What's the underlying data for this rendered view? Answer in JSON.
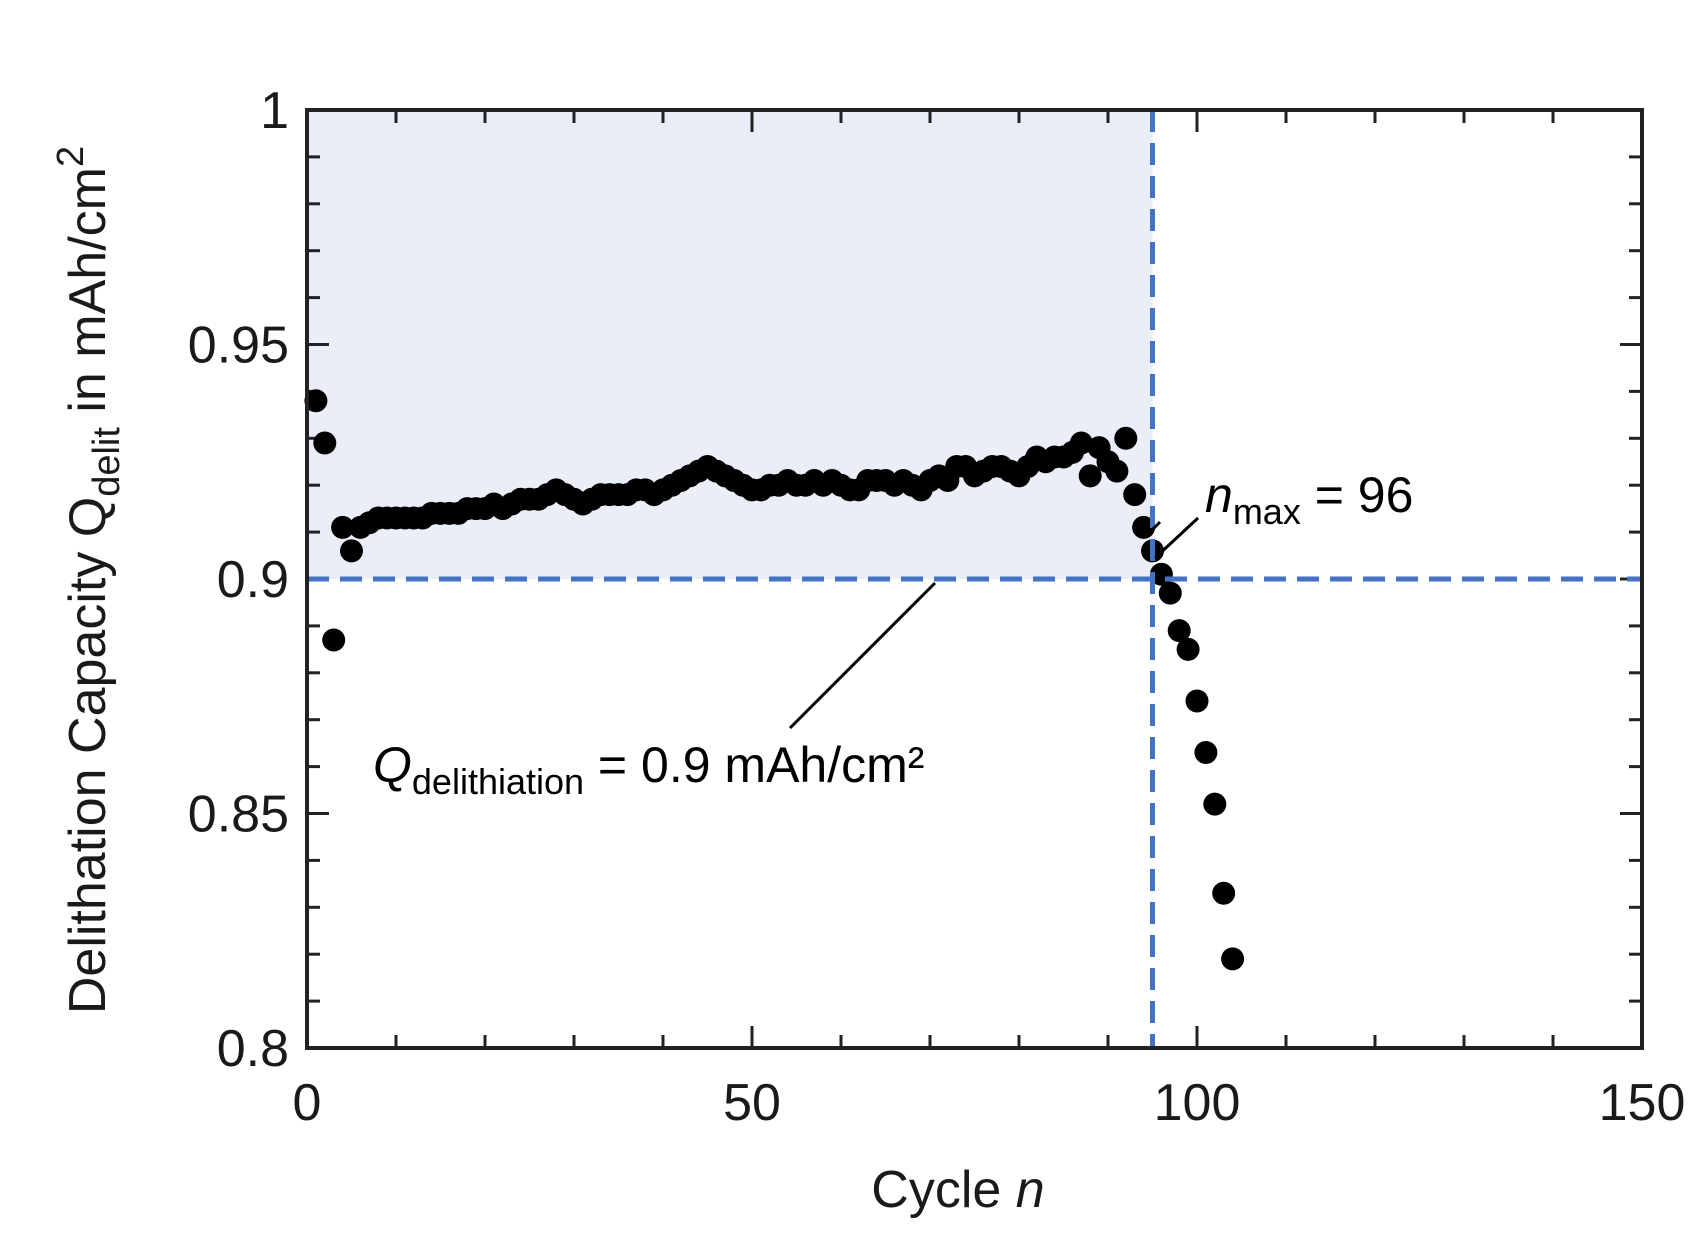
{
  "chart_data": {
    "type": "scatter",
    "xlabel": {
      "text": "Cycle ",
      "italic": "n"
    },
    "ylabel": {
      "prefix": "Delithation Capacity ",
      "symbol": "Q",
      "subscript": "delit",
      "suffix": " in mAh/cm",
      "superscript": "2"
    },
    "xlim": [
      0,
      150
    ],
    "ylim": [
      0.8,
      1.0
    ],
    "x_ticks": [
      0,
      50,
      100,
      150
    ],
    "x_tick_labels": [
      "0",
      "50",
      "100",
      "150"
    ],
    "y_ticks": [
      0.8,
      0.85,
      0.9,
      0.95,
      1.0
    ],
    "y_tick_labels": [
      "0.8",
      "0.85",
      "0.9",
      "0.95",
      "1"
    ],
    "threshold_y": 0.9,
    "threshold_x": 95,
    "shaded_region": {
      "x": [
        0,
        95
      ],
      "y": [
        0.9,
        1.0
      ],
      "color": "#e9eef8"
    },
    "colors": {
      "marker": "#000000",
      "dashed": "#4472c4",
      "axis": "#222222"
    },
    "annotations": {
      "qdelith": {
        "symbol": "Q",
        "subscript": "delithiation",
        "rest": " = 0.9 mAh/cm²"
      },
      "nmax": {
        "symbol": "n",
        "subscript": "max",
        "rest": " = 96"
      }
    },
    "series": [
      {
        "name": "delithiation capacity",
        "x": [
          1,
          2,
          3,
          4,
          5,
          6,
          7,
          8,
          9,
          10,
          11,
          12,
          13,
          14,
          15,
          16,
          17,
          18,
          19,
          20,
          21,
          22,
          23,
          24,
          25,
          26,
          27,
          28,
          29,
          30,
          31,
          32,
          33,
          34,
          35,
          36,
          37,
          38,
          39,
          40,
          41,
          42,
          43,
          44,
          45,
          46,
          47,
          48,
          49,
          50,
          51,
          52,
          53,
          54,
          55,
          56,
          57,
          58,
          59,
          60,
          61,
          62,
          63,
          64,
          65,
          66,
          67,
          68,
          69,
          70,
          71,
          72,
          73,
          74,
          75,
          76,
          77,
          78,
          79,
          80,
          81,
          82,
          83,
          84,
          85,
          86,
          87,
          88,
          89,
          90,
          91,
          92,
          93,
          94,
          95,
          96,
          97,
          98,
          99,
          100,
          101,
          102,
          103,
          104
        ],
        "y": [
          0.938,
          0.929,
          0.887,
          0.911,
          0.906,
          0.911,
          0.912,
          0.913,
          0.913,
          0.913,
          0.913,
          0.913,
          0.913,
          0.914,
          0.914,
          0.914,
          0.914,
          0.915,
          0.915,
          0.915,
          0.916,
          0.915,
          0.916,
          0.917,
          0.917,
          0.917,
          0.918,
          0.919,
          0.918,
          0.917,
          0.916,
          0.917,
          0.918,
          0.918,
          0.918,
          0.918,
          0.919,
          0.919,
          0.918,
          0.919,
          0.92,
          0.921,
          0.922,
          0.923,
          0.924,
          0.923,
          0.922,
          0.921,
          0.92,
          0.919,
          0.919,
          0.92,
          0.92,
          0.921,
          0.92,
          0.92,
          0.921,
          0.92,
          0.921,
          0.92,
          0.919,
          0.919,
          0.921,
          0.921,
          0.921,
          0.92,
          0.921,
          0.92,
          0.919,
          0.921,
          0.922,
          0.921,
          0.924,
          0.924,
          0.922,
          0.923,
          0.924,
          0.924,
          0.923,
          0.922,
          0.924,
          0.926,
          0.925,
          0.926,
          0.926,
          0.927,
          0.929,
          0.922,
          0.928,
          0.925,
          0.923,
          0.93,
          0.918,
          0.911,
          0.906,
          0.901,
          0.897,
          0.889,
          0.885,
          0.874,
          0.863,
          0.852,
          0.833,
          0.819
        ]
      }
    ]
  }
}
